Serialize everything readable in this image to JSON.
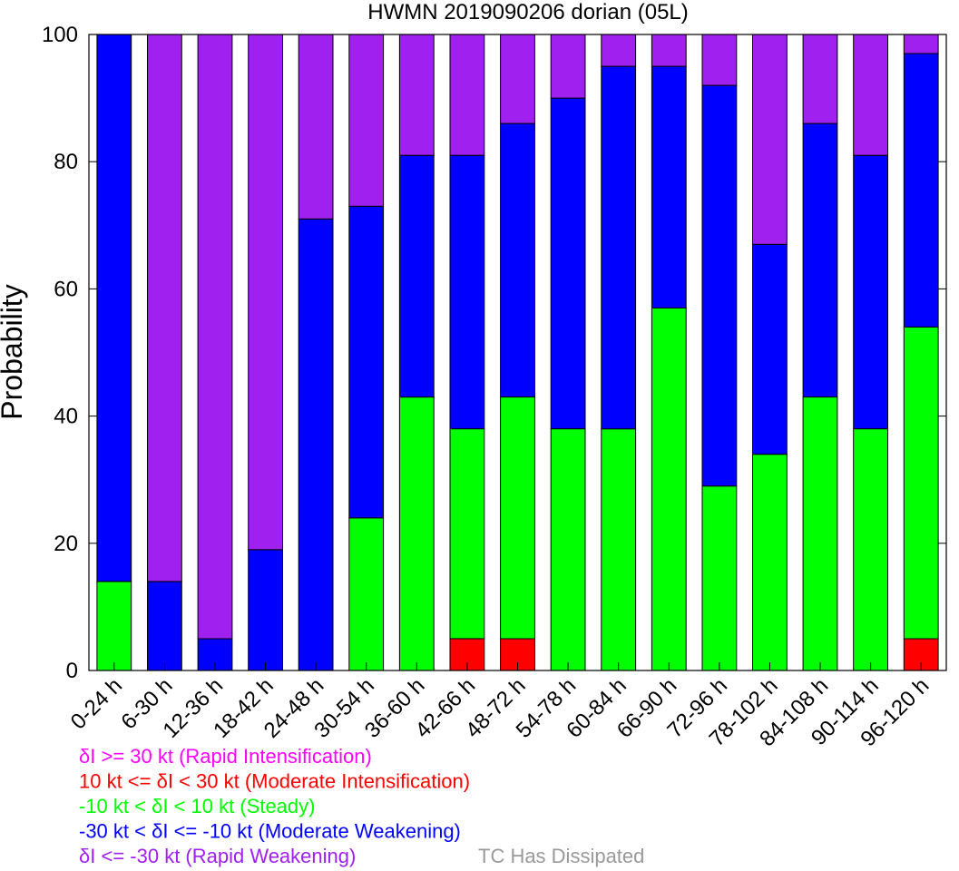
{
  "chart_data": {
    "type": "bar",
    "stacked": true,
    "title": "HWMN 2019090206 dorian (05L)",
    "ylabel": "Probability",
    "xlabel": "",
    "ylim": [
      0,
      100
    ],
    "yticks": [
      0,
      20,
      40,
      60,
      80,
      100
    ],
    "categories": [
      "0-24 h",
      "6-30 h",
      "12-36 h",
      "18-42 h",
      "24-48 h",
      "30-54 h",
      "36-60 h",
      "42-66 h",
      "48-72 h",
      "54-78 h",
      "60-84 h",
      "66-90 h",
      "72-96 h",
      "78-102 h",
      "84-108 h",
      "90-114 h",
      "96-120 h"
    ],
    "series": [
      {
        "name": "10 kt <= δI < 30 kt (Moderate Intensification)",
        "color": "#ff0000",
        "values": [
          0,
          0,
          0,
          0,
          0,
          0,
          0,
          5,
          5,
          0,
          0,
          0,
          0,
          0,
          0,
          0,
          5
        ]
      },
      {
        "name": "-10 kt < δI < 10 kt (Steady)",
        "color": "#00ff00",
        "values": [
          14,
          0,
          0,
          0,
          0,
          24,
          43,
          33,
          38,
          38,
          38,
          57,
          29,
          34,
          43,
          38,
          49
        ]
      },
      {
        "name": "-30 kt < δI <= -10 kt (Moderate Weakening)",
        "color": "#0000ff",
        "values": [
          86,
          14,
          5,
          19,
          71,
          49,
          38,
          43,
          43,
          52,
          57,
          38,
          63,
          33,
          43,
          43,
          43
        ]
      },
      {
        "name": "δI <= -30 kt (Rapid Weakening)",
        "color": "#a020f0",
        "values": [
          0,
          86,
          95,
          81,
          29,
          27,
          19,
          19,
          14,
          10,
          5,
          5,
          8,
          33,
          14,
          19,
          3
        ]
      }
    ],
    "legend": {
      "position": "bottom-left",
      "entries": [
        {
          "text": "δI >= 30 kt (Rapid Intensification)",
          "color": "#ff00ff"
        },
        {
          "text": "10 kt <= δI < 30 kt (Moderate Intensification)",
          "color": "#ff0000"
        },
        {
          "text": "-10 kt < δI < 10 kt (Steady)",
          "color": "#00ff00"
        },
        {
          "text": "-30 kt < δI <= -10 kt (Moderate Weakening)",
          "color": "#0000ff"
        },
        {
          "text": "δI <= -30 kt (Rapid Weakening)",
          "color": "#a020f0"
        }
      ],
      "dissipated": {
        "text": "TC Has Dissipated",
        "color": "#999999"
      }
    },
    "grid": false
  }
}
